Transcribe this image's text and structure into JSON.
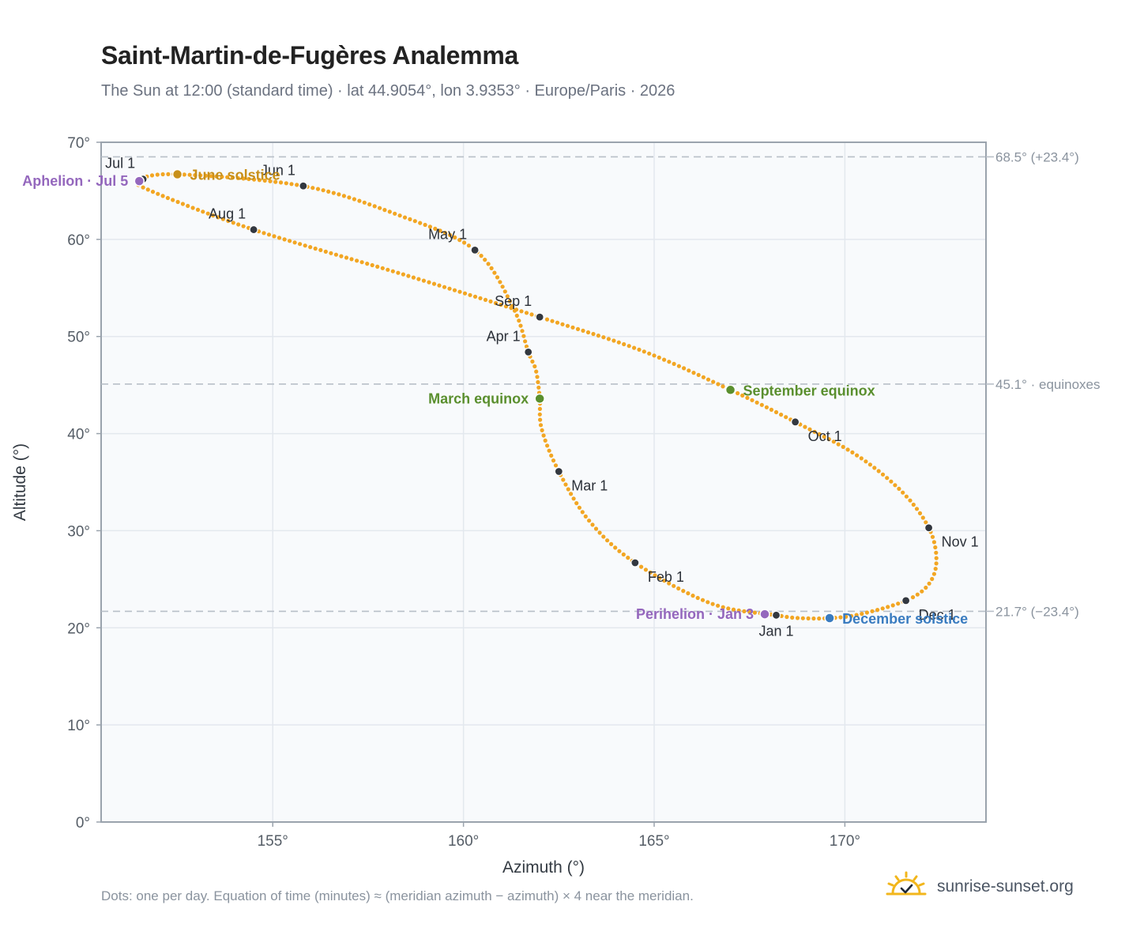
{
  "header": {
    "title": "Saint-Martin-de-Fugères Analemma",
    "subtitle": "The Sun at 12:00 (standard time) · lat 44.9054°, lon 3.9353° · Europe/Paris · 2026"
  },
  "footer": {
    "note": "Dots: one per day. Equation of time (minutes) ≈ (meridian azimuth − azimuth) × 4 near the meridian.",
    "brand": "sunrise-sunset.org",
    "brand_icon": "sun-check-icon"
  },
  "colors": {
    "curve": "#f2a623",
    "month_marker": "#333840",
    "june_solstice": "#c8901a",
    "equinox": "#5a8f2e",
    "december_solstice": "#3a7cc0",
    "apsis": "#9467bd",
    "reference_line": "#b8bfc8",
    "plot_background": "#f8fafc"
  },
  "chart_data": {
    "type": "scatter",
    "xlabel": "Azimuth (°)",
    "ylabel": "Altitude (°)",
    "xlim": [
      150.5,
      173.7
    ],
    "ylim": [
      0,
      70
    ],
    "xticks": [
      155,
      160,
      165,
      170
    ],
    "xtick_labels": [
      "155°",
      "160°",
      "165°",
      "170°"
    ],
    "yticks": [
      0,
      10,
      20,
      30,
      40,
      50,
      60,
      70
    ],
    "ytick_labels": [
      "0°",
      "10°",
      "20°",
      "30°",
      "40°",
      "50°",
      "60°",
      "70°"
    ],
    "grid": true,
    "reference_lines": [
      {
        "y": 68.5,
        "label": "68.5° (+23.4°)"
      },
      {
        "y": 45.1,
        "label": "45.1° · equinoxes"
      },
      {
        "y": 21.7,
        "label": "21.7° (−23.4°)"
      }
    ],
    "path_points": [
      {
        "az": 168.2,
        "alt": 21.3
      },
      {
        "az": 166.5,
        "alt": 22.5
      },
      {
        "az": 164.5,
        "alt": 26.7
      },
      {
        "az": 163.3,
        "alt": 31.0
      },
      {
        "az": 162.5,
        "alt": 36.1
      },
      {
        "az": 162.05,
        "alt": 40.5
      },
      {
        "az": 162.0,
        "alt": 43.6
      },
      {
        "az": 161.9,
        "alt": 46.5
      },
      {
        "az": 161.7,
        "alt": 48.4
      },
      {
        "az": 161.3,
        "alt": 53.0
      },
      {
        "az": 160.3,
        "alt": 58.9
      },
      {
        "az": 158.3,
        "alt": 62.5
      },
      {
        "az": 155.8,
        "alt": 65.5
      },
      {
        "az": 152.5,
        "alt": 66.7
      },
      {
        "az": 151.5,
        "alt": 66.1
      },
      {
        "az": 151.8,
        "alt": 65.0
      },
      {
        "az": 154.5,
        "alt": 61.0
      },
      {
        "az": 158.5,
        "alt": 56.3
      },
      {
        "az": 162.0,
        "alt": 52.0
      },
      {
        "az": 164.7,
        "alt": 48.5
      },
      {
        "az": 167.0,
        "alt": 44.5
      },
      {
        "az": 168.7,
        "alt": 41.2
      },
      {
        "az": 170.3,
        "alt": 37.8
      },
      {
        "az": 171.5,
        "alt": 34.0
      },
      {
        "az": 172.2,
        "alt": 30.3
      },
      {
        "az": 172.4,
        "alt": 27.0
      },
      {
        "az": 172.2,
        "alt": 24.5
      },
      {
        "az": 171.6,
        "alt": 22.8
      },
      {
        "az": 170.4,
        "alt": 21.4
      },
      {
        "az": 169.6,
        "alt": 21.0
      },
      {
        "az": 168.8,
        "alt": 21.0
      },
      {
        "az": 168.2,
        "alt": 21.3
      }
    ],
    "month_markers": [
      {
        "label": "Jan 1",
        "az": 168.2,
        "alt": 21.3,
        "anchor": "below"
      },
      {
        "label": "Feb 1",
        "az": 164.5,
        "alt": 26.7,
        "anchor": "below-right"
      },
      {
        "label": "Mar 1",
        "az": 162.5,
        "alt": 36.1,
        "anchor": "below-right"
      },
      {
        "label": "Apr 1",
        "az": 161.7,
        "alt": 48.4,
        "anchor": "above-left"
      },
      {
        "label": "May 1",
        "az": 160.3,
        "alt": 58.9,
        "anchor": "above-left"
      },
      {
        "label": "Jun 1",
        "az": 155.8,
        "alt": 65.5,
        "anchor": "above-left"
      },
      {
        "label": "Jul 1",
        "az": 151.6,
        "alt": 66.2,
        "anchor": "above-left"
      },
      {
        "label": "Aug 1",
        "az": 154.5,
        "alt": 61.0,
        "anchor": "above-left"
      },
      {
        "label": "Sep 1",
        "az": 162.0,
        "alt": 52.0,
        "anchor": "above-left"
      },
      {
        "label": "Oct 1",
        "az": 168.7,
        "alt": 41.2,
        "anchor": "below-right"
      },
      {
        "label": "Nov 1",
        "az": 172.2,
        "alt": 30.3,
        "anchor": "below-right"
      },
      {
        "label": "Dec 1",
        "az": 171.6,
        "alt": 22.8,
        "anchor": "below-right"
      }
    ],
    "events": [
      {
        "label": "June solstice",
        "az": 152.5,
        "alt": 66.7,
        "color_key": "june_solstice",
        "anchor": "right"
      },
      {
        "label": "March equinox",
        "az": 162.0,
        "alt": 43.6,
        "color_key": "equinox",
        "anchor": "left"
      },
      {
        "label": "September equinox",
        "az": 167.0,
        "alt": 44.5,
        "color_key": "equinox",
        "anchor": "right"
      },
      {
        "label": "December solstice",
        "az": 169.6,
        "alt": 21.0,
        "color_key": "december_solstice",
        "anchor": "right"
      },
      {
        "label": "Aphelion · Jul 5",
        "az": 151.5,
        "alt": 66.0,
        "color_key": "apsis",
        "anchor": "left"
      },
      {
        "label": "Perihelion · Jan 3",
        "az": 167.9,
        "alt": 21.4,
        "color_key": "apsis",
        "anchor": "left"
      }
    ]
  }
}
